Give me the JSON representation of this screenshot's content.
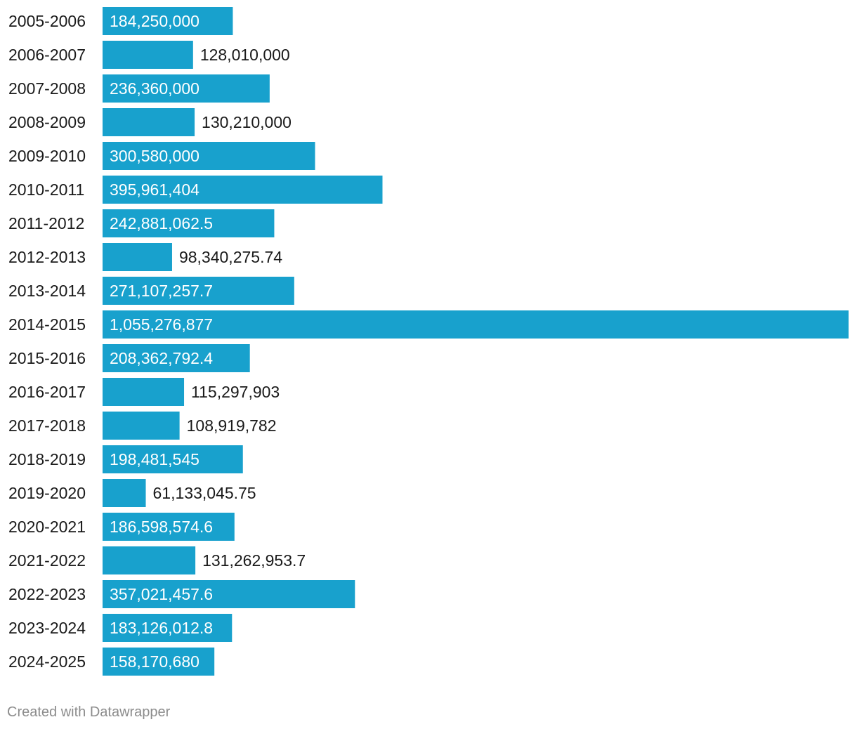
{
  "chart_data": {
    "type": "bar",
    "orientation": "horizontal",
    "bar_color": "#18a1cd",
    "label_color_inside": "#ffffff",
    "label_color_outside": "#1a1a1a",
    "category_label_color": "#1a1a1a",
    "categories": [
      "2005-2006",
      "2006-2007",
      "2007-2008",
      "2008-2009",
      "2009-2010",
      "2010-2011",
      "2011-2012",
      "2012-2013",
      "2013-2014",
      "2014-2015",
      "2015-2016",
      "2016-2017",
      "2017-2018",
      "2018-2019",
      "2019-2020",
      "2020-2021",
      "2021-2022",
      "2022-2023",
      "2023-2024",
      "2024-2025"
    ],
    "values": [
      184250000,
      128010000,
      236360000,
      130210000,
      300580000,
      395961404,
      242881062.5,
      98340275.74,
      271107257.7,
      1055276877,
      208362792.4,
      115297903,
      108919782,
      198481545,
      61133045.75,
      186598574.6,
      131262953.7,
      357021457.6,
      183126012.8,
      158170680
    ],
    "value_labels": [
      "184,250,000",
      "128,010,000",
      "236,360,000",
      "130,210,000",
      "300,580,000",
      "395,961,404",
      "242,881,062.5",
      "98,340,275.74",
      "271,107,257.7",
      "1,055,276,877",
      "208,362,792.4",
      "115,297,903",
      "108,919,782",
      "198,481,545",
      "61,133,045.75",
      "186,598,574.6",
      "131,262,953.7",
      "357,021,457.6",
      "183,126,012.8",
      "158,170,680"
    ],
    "xlim": [
      0,
      1055276877
    ],
    "grid": false,
    "title": "",
    "xlabel": "",
    "ylabel": ""
  },
  "footer": {
    "credit": "Created with Datawrapper"
  }
}
